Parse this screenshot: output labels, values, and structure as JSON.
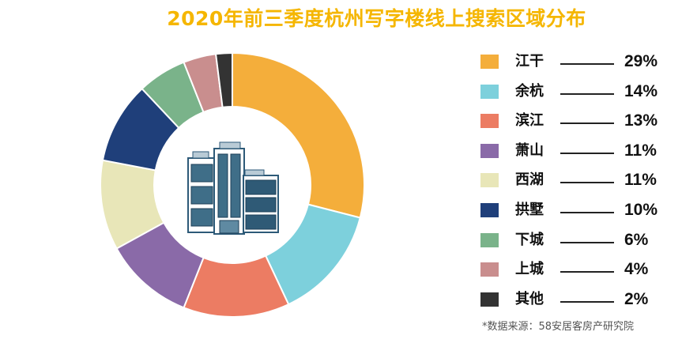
{
  "chart_data": {
    "type": "pie",
    "variant": "donut",
    "title": "2020年前三季度杭州写字楼线上搜索区域分布",
    "categories": [
      "江干",
      "余杭",
      "滨江",
      "萧山",
      "西湖",
      "拱墅",
      "下城",
      "上城",
      "其他"
    ],
    "values": [
      29,
      14,
      13,
      11,
      11,
      10,
      6,
      4,
      2
    ],
    "labels": [
      "29%",
      "14%",
      "13%",
      "11%",
      "11%",
      "10%",
      "6%",
      "4%",
      "2%"
    ],
    "colors": [
      "#f4ae3b",
      "#7dd0dc",
      "#ec7c63",
      "#8a6aa8",
      "#e8e6b8",
      "#1f3f7a",
      "#7ab38a",
      "#c98e8e",
      "#333333"
    ],
    "legend_position": "right",
    "center_icon": "office-building-icon",
    "source": "*数据来源：58安居客房产研究院"
  }
}
